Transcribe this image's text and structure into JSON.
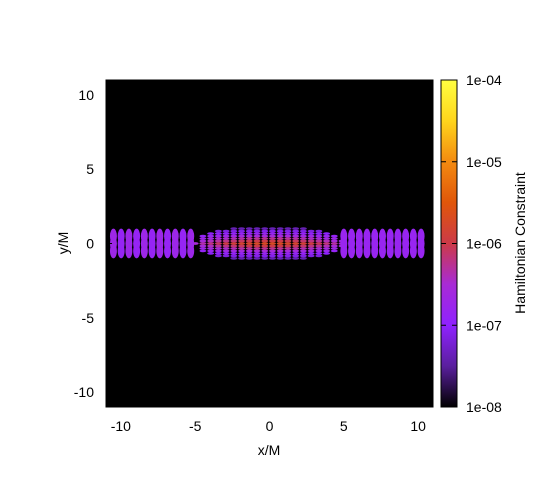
{
  "chart_data": {
    "type": "heatmap",
    "title": "",
    "xlabel": "x/M",
    "ylabel": "y/M",
    "xlim": [
      -11,
      11
    ],
    "ylim": [
      -11,
      11
    ],
    "x_ticks": [
      -10,
      -5,
      0,
      5,
      10
    ],
    "y_ticks": [
      10,
      5,
      0,
      -5,
      -10
    ],
    "x_tick_labels": [
      "-10",
      "-5",
      "0",
      "5",
      "10"
    ],
    "y_tick_labels": [
      "10",
      "5",
      "0",
      "-5",
      "-10"
    ],
    "grid": false,
    "background_color": "#000000",
    "colorbar": {
      "label": "Hamiltonian Constraint",
      "scale": "log",
      "range": [
        1e-08,
        0.0001
      ],
      "ticks": [
        0.0001,
        1e-05,
        1e-06,
        1e-07,
        1e-08
      ],
      "tick_labels": [
        "1e-04",
        "1e-05",
        "1e-06",
        "1e-07",
        "1e-08"
      ],
      "colormap": [
        "#000000",
        "#5a1f9e",
        "#8f22ff",
        "#a82bd6",
        "#cc3a48",
        "#e0560a",
        "#f38a10",
        "#ffd51c",
        "#ffff40"
      ]
    },
    "features": [
      {
        "name": "central band",
        "x_range": [
          -5,
          5
        ],
        "y_center": 0,
        "half_width_y": 1.0,
        "peak_value": 2e-06
      },
      {
        "name": "left band",
        "x_range": [
          -10.5,
          -5
        ],
        "y_center": 0,
        "half_width_y": 0.5,
        "peak_value": 2e-07
      },
      {
        "name": "right band",
        "x_range": [
          5,
          10.5
        ],
        "y_center": 0,
        "half_width_y": 0.5,
        "peak_value": 2e-07
      }
    ]
  }
}
